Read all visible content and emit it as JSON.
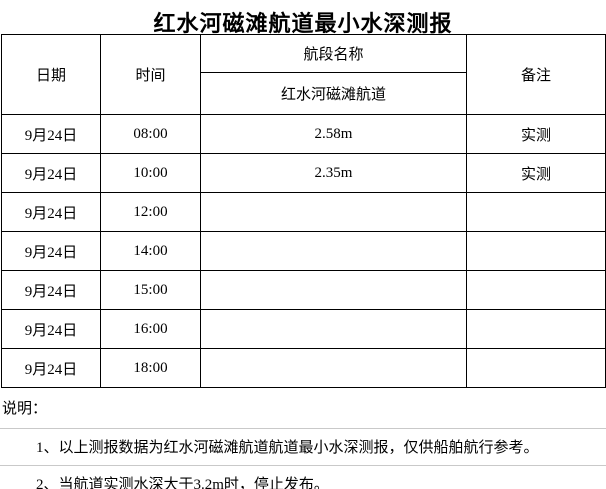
{
  "title": "红水河磁滩航道最小水深测报",
  "table": {
    "headers": {
      "date": "日期",
      "time": "时间",
      "segment_group": "航段名称",
      "segment_name": "红水河磁滩航道",
      "remark": "备注"
    },
    "rows": [
      {
        "date": "9月24日",
        "time": "08:00",
        "depth": "2.58m",
        "remark": "实测"
      },
      {
        "date": "9月24日",
        "time": "10:00",
        "depth": "2.35m",
        "remark": "实测"
      },
      {
        "date": "9月24日",
        "time": "12:00",
        "depth": "",
        "remark": ""
      },
      {
        "date": "9月24日",
        "time": "14:00",
        "depth": "",
        "remark": ""
      },
      {
        "date": "9月24日",
        "time": "15:00",
        "depth": "",
        "remark": ""
      },
      {
        "date": "9月24日",
        "time": "16:00",
        "depth": "",
        "remark": ""
      },
      {
        "date": "9月24日",
        "time": "18:00",
        "depth": "",
        "remark": ""
      }
    ]
  },
  "notes": {
    "label": "说明：",
    "items": [
      "1、以上测报数据为红水河磁滩航道航道最小水深测报，仅供船舶航行参考。",
      "2、当航道实测水深大于3.2m时，停止发布。"
    ]
  },
  "colors": {
    "text": "#000000",
    "table_border": "#000000",
    "note_rule": "#c9c9c9",
    "background": "#ffffff"
  }
}
